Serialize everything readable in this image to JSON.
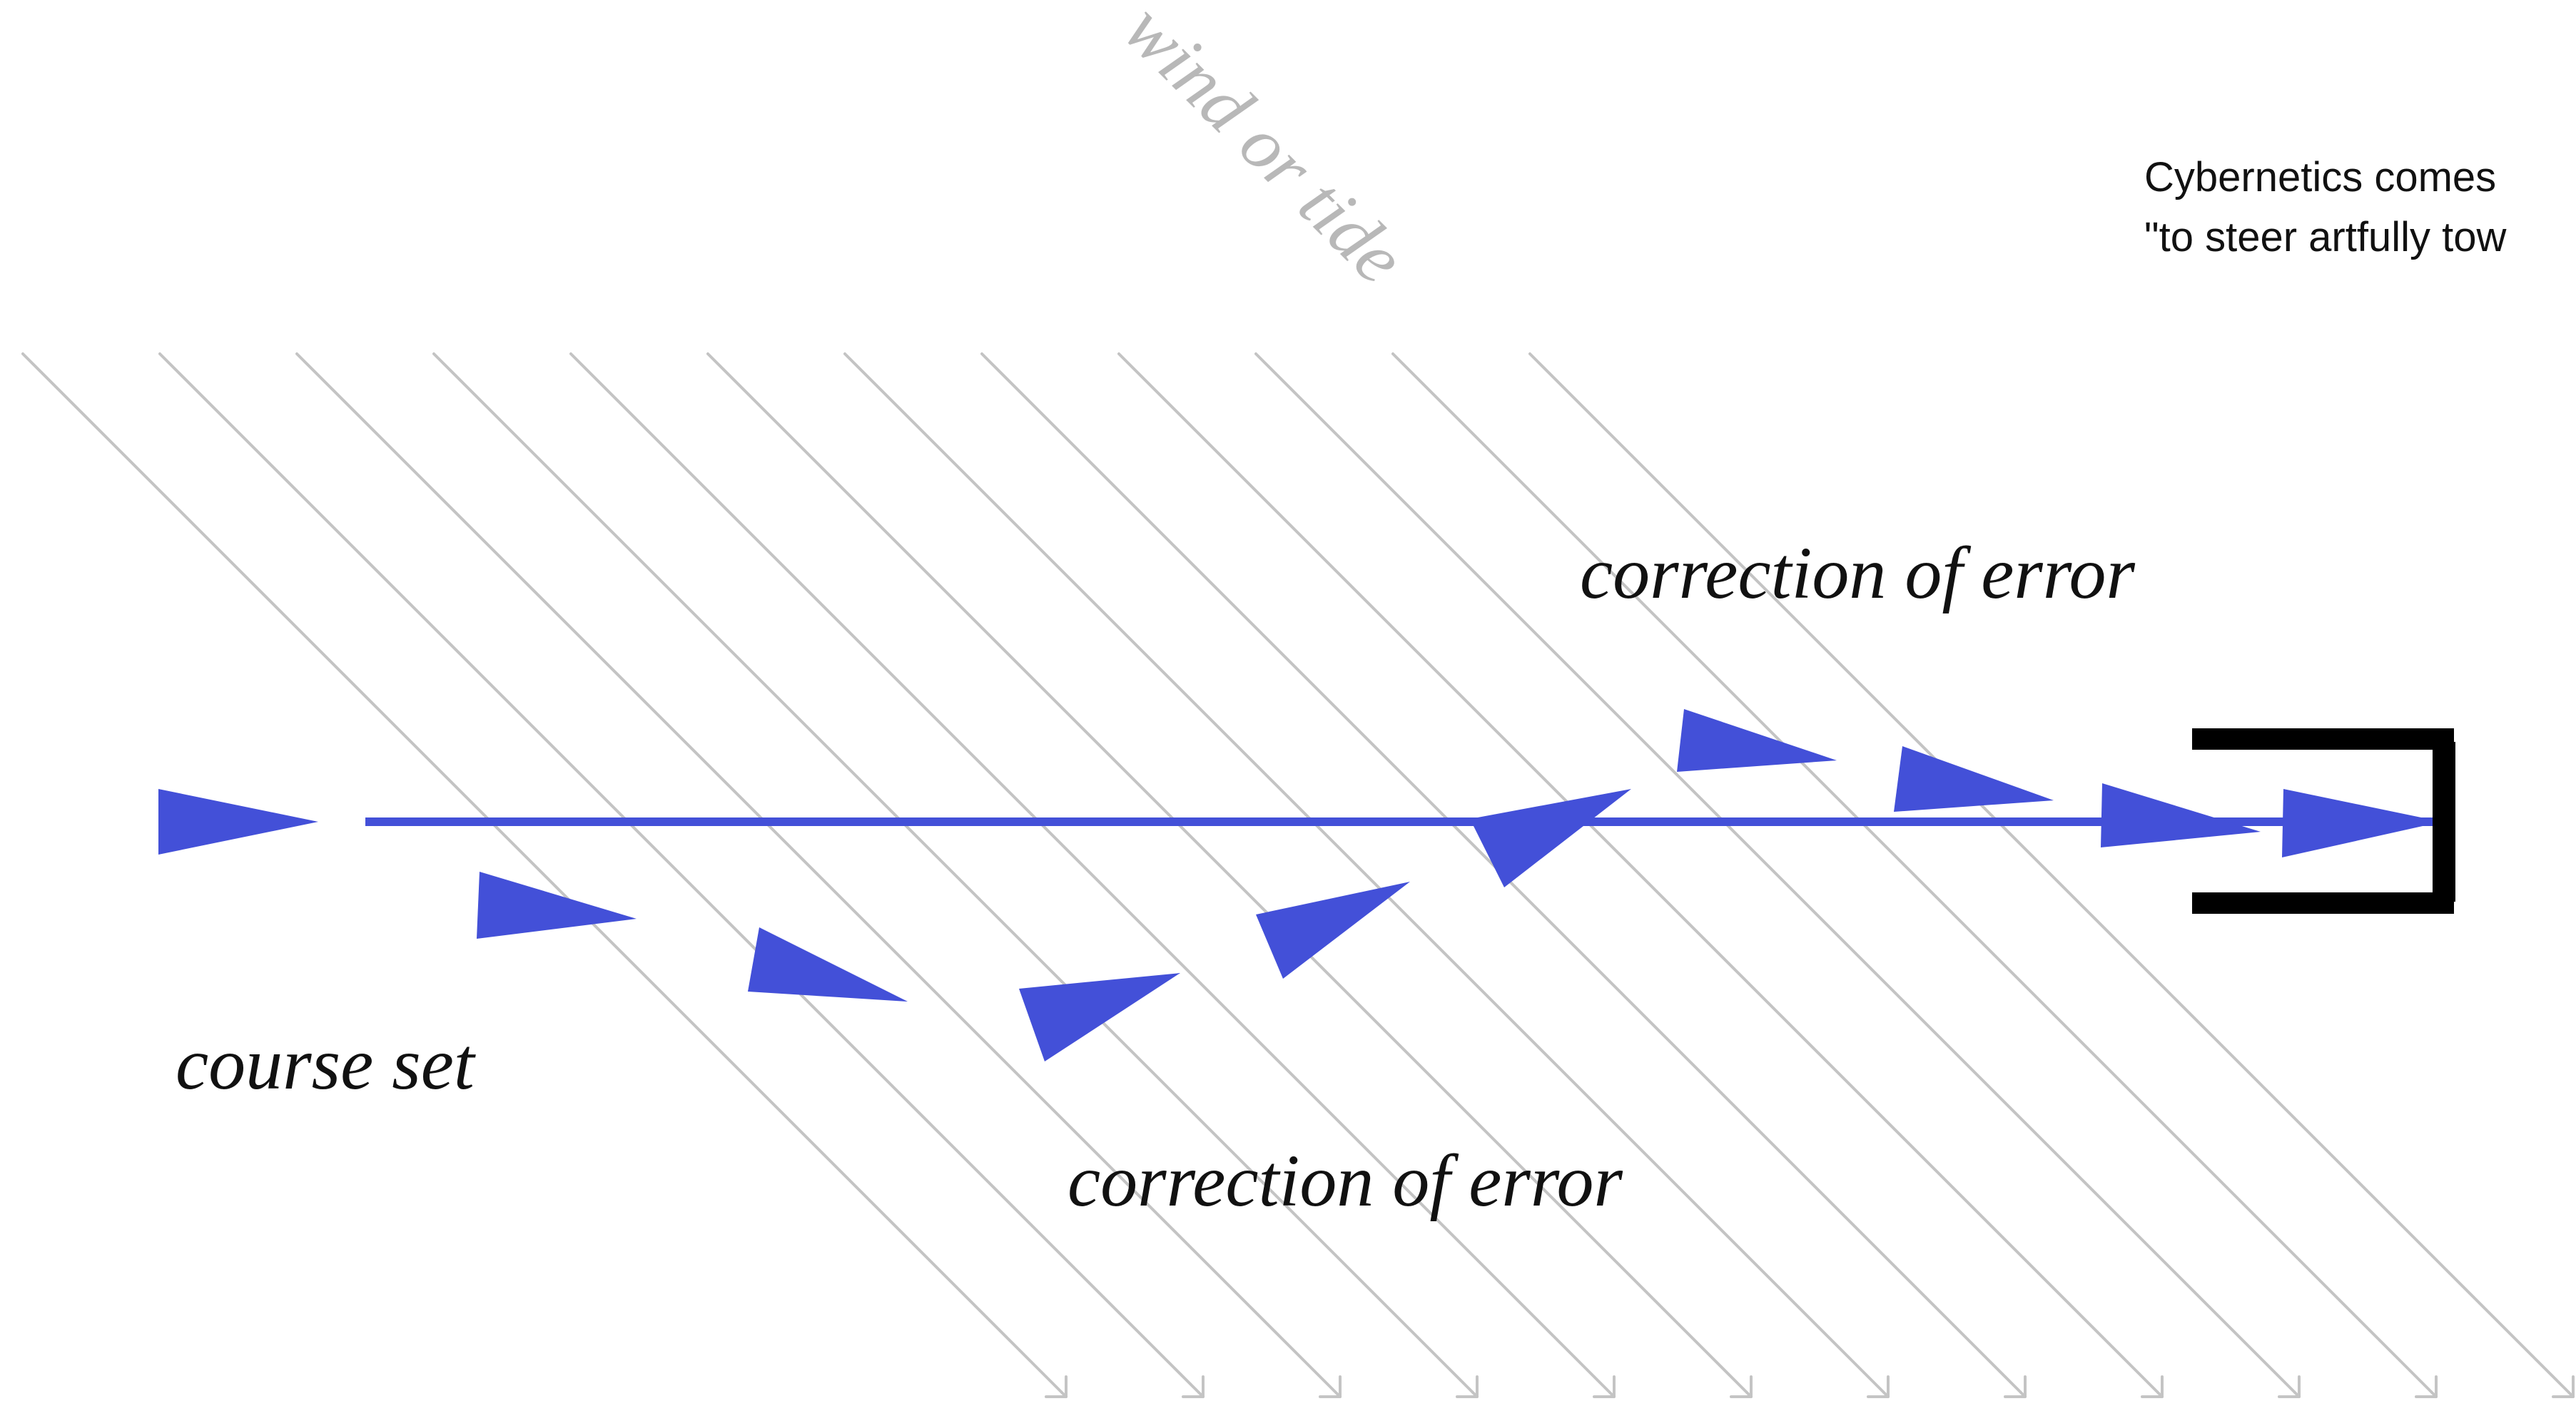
{
  "labels": {
    "wind": "wind or tide",
    "correction_upper": "correction of error",
    "correction_lower": "correction of error",
    "course_set": "course set"
  },
  "note": {
    "line1": "Cybernetics comes",
    "line2": "\"to steer artfully tow"
  },
  "colors": {
    "arrow": "#4350d8",
    "current_lines": "#c4c4c4",
    "wind_text": "#b8b8b8",
    "target": "#000000",
    "text": "#111111"
  },
  "icons": {
    "target": "dock-bracket-icon",
    "heading": "heading-arrow-icon",
    "current": "current-line-icon"
  }
}
